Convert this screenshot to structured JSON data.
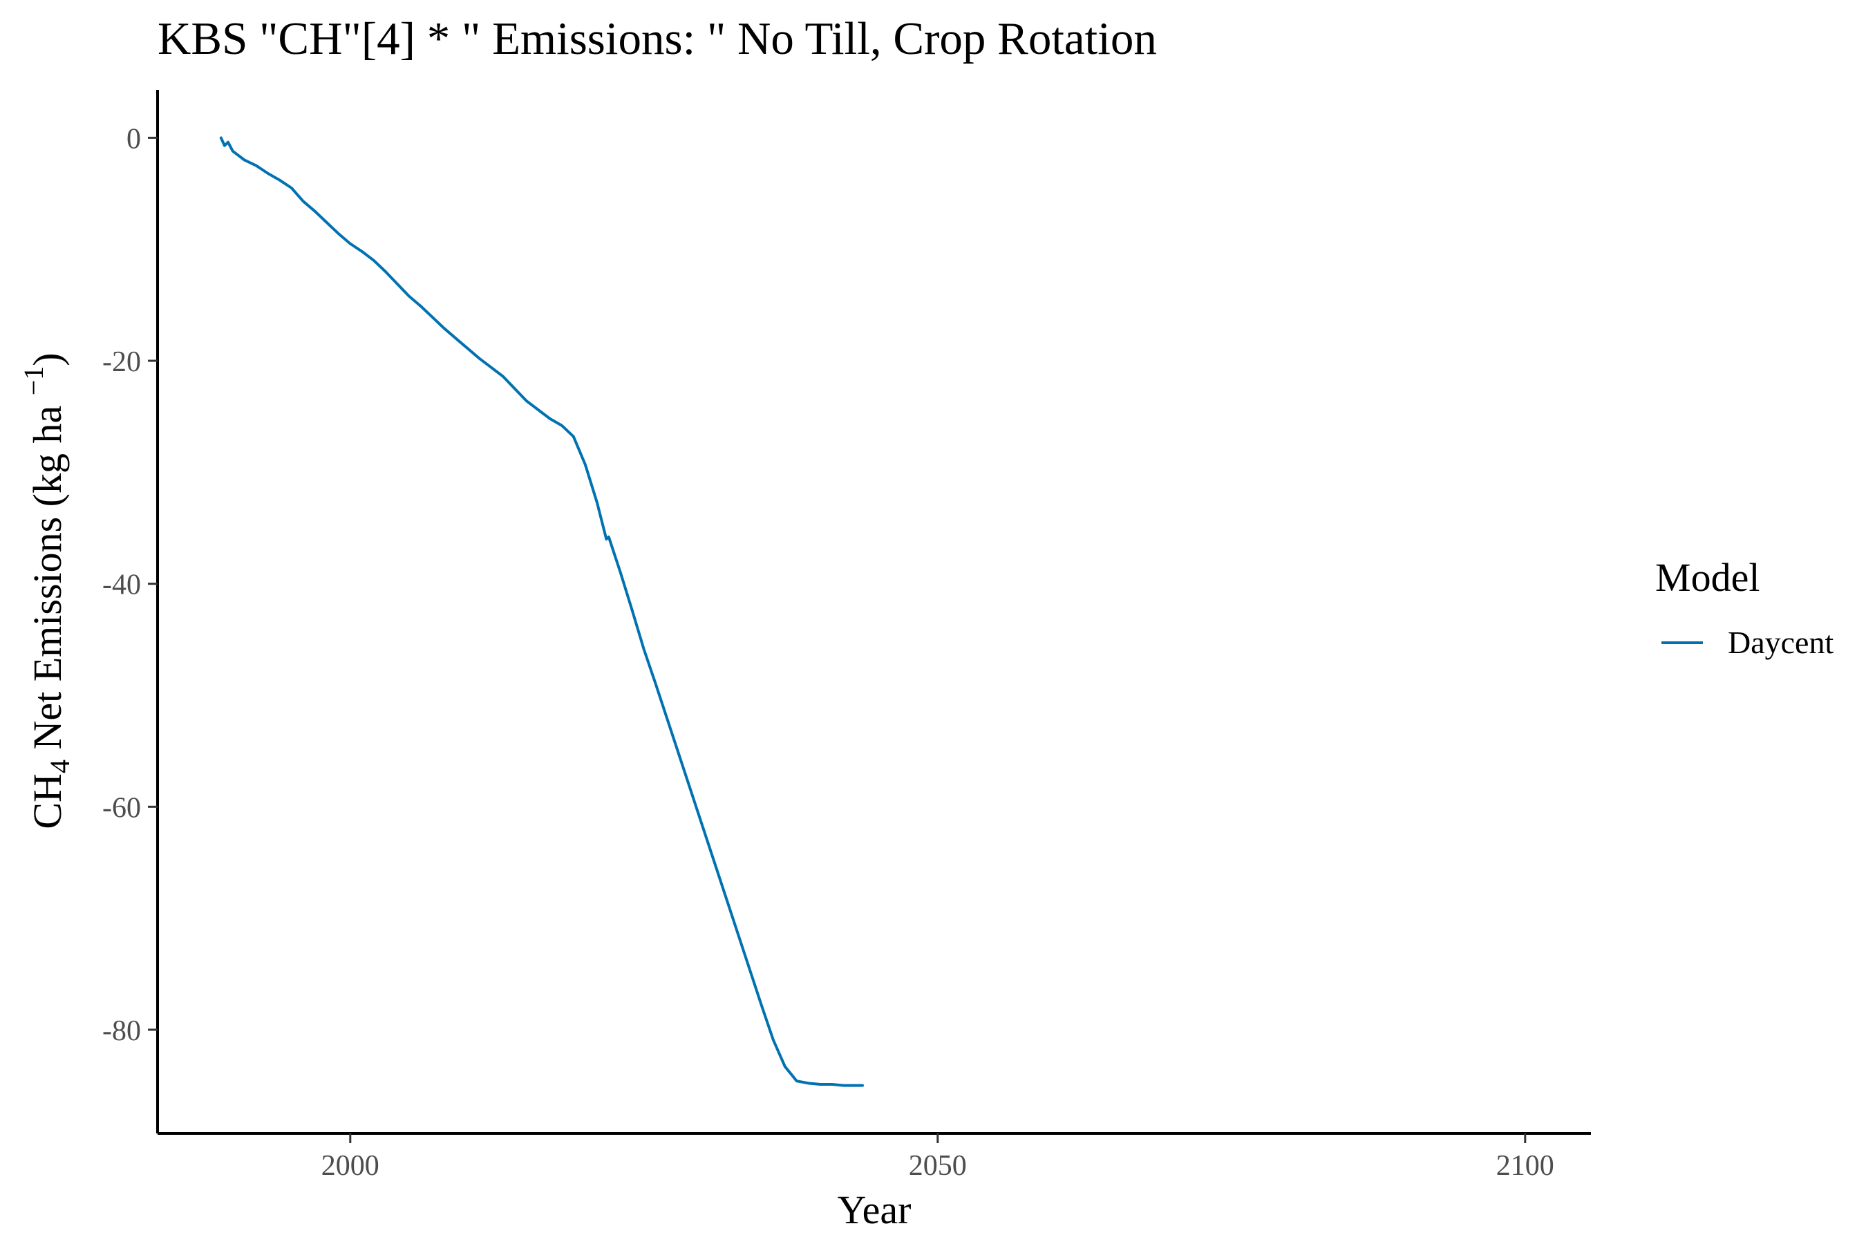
{
  "chart_data": {
    "type": "line",
    "title": "KBS \"CH\"[4] * \" Emissions: \" No Till, Crop Rotation",
    "xlabel": "Year",
    "ylabel_parts": {
      "pre": "CH",
      "sub": "4",
      "mid": " Net Emissions (kg ha ",
      "sup": "−1",
      "post": ")"
    },
    "xlim": [
      1983.6,
      2105.6
    ],
    "ylim": [
      -89.3,
      4.3
    ],
    "xticks": [
      {
        "value": 2000,
        "label": "2000"
      },
      {
        "value": 2050,
        "label": "2050"
      },
      {
        "value": 2100,
        "label": "2100"
      }
    ],
    "yticks": [
      {
        "value": 0,
        "label": "0"
      },
      {
        "value": -20,
        "label": "-20"
      },
      {
        "value": -40,
        "label": "-40"
      },
      {
        "value": -60,
        "label": "-60"
      },
      {
        "value": -80,
        "label": "-80"
      }
    ],
    "legend": {
      "title": "Model",
      "position": "right"
    },
    "grid": false,
    "series": [
      {
        "name": "Daycent",
        "color": "#0072B2",
        "x": [
          1989.0,
          1989.3,
          1989.6,
          1990.0,
          1991.0,
          1992.0,
          1993.0,
          1994.0,
          1995.0,
          1996.0,
          1997.0,
          1998.0,
          1999.0,
          2000.0,
          2001.0,
          2002.0,
          2003.0,
          2004.0,
          2005.0,
          2006.0,
          2007.0,
          2008.0,
          2009.0,
          2010.0,
          2011.0,
          2012.0,
          2013.0,
          2014.0,
          2015.0,
          2016.0,
          2017.0,
          2018.0,
          2019.0,
          2020.0,
          2021.0,
          2021.8,
          2022.0,
          2023.0,
          2024.0,
          2025.0,
          2026.0,
          2027.0,
          2028.0,
          2029.0,
          2030.0,
          2031.0,
          2032.0,
          2033.0,
          2034.0,
          2035.0,
          2036.0,
          2037.0,
          2038.0,
          2039.0,
          2040.0,
          2041.0,
          2042.0,
          2043.0,
          2043.6
        ],
        "values": [
          0.0,
          -0.7,
          -0.4,
          -1.2,
          -2.0,
          -2.5,
          -3.2,
          -3.8,
          -4.5,
          -5.7,
          -6.6,
          -7.6,
          -8.6,
          -9.5,
          -10.2,
          -11.0,
          -12.0,
          -13.1,
          -14.2,
          -15.1,
          -16.1,
          -17.1,
          -18.0,
          -18.9,
          -19.8,
          -20.6,
          -21.4,
          -22.5,
          -23.6,
          -24.4,
          -25.2,
          -25.8,
          -26.8,
          -29.3,
          -32.7,
          -36.0,
          -35.8,
          -39.0,
          -42.4,
          -45.9,
          -49.0,
          -52.2,
          -55.4,
          -58.6,
          -61.8,
          -65.0,
          -68.2,
          -71.4,
          -74.6,
          -77.8,
          -80.9,
          -83.3,
          -84.6,
          -84.8,
          -84.9,
          -84.9,
          -85.0,
          -85.0,
          -85.0
        ]
      }
    ]
  }
}
